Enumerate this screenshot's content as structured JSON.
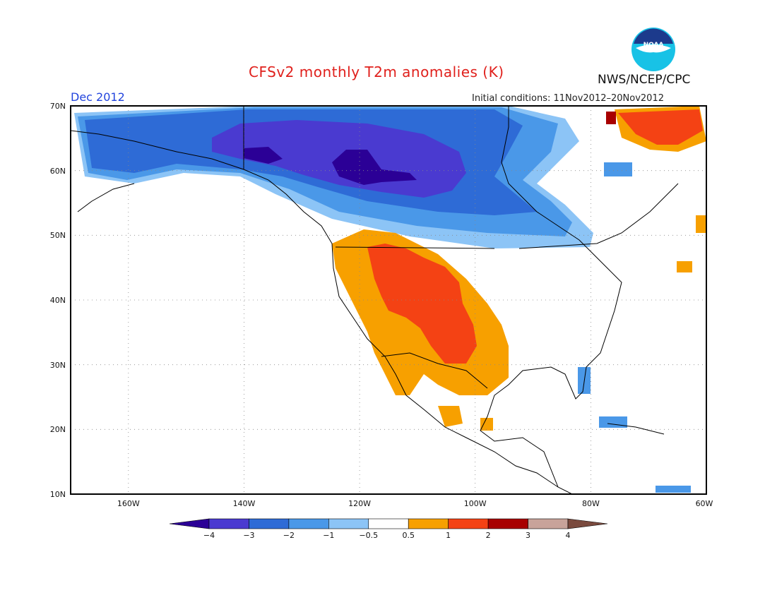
{
  "title": "CFSv2 monthly T2m anomalies (K)",
  "org": "NWS/NCEP/CPC",
  "logo_text": "NOAA",
  "month": "Dec 2012",
  "init": "Initial conditions: 11Nov2012–20Nov2012",
  "lat_labels": [
    "70N",
    "60N",
    "50N",
    "40N",
    "30N",
    "20N",
    "10N"
  ],
  "lon_labels": [
    "160W",
    "140W",
    "120W",
    "100W",
    "80W",
    "60W"
  ],
  "colorbar": {
    "colors": [
      "#2b0096",
      "#4a3ad0",
      "#2e6bd6",
      "#4a98e8",
      "#8cc4f6",
      "#ffffff",
      "#f7a000",
      "#f44214",
      "#a80000",
      "#c8a39a",
      "#7a4a3e"
    ],
    "labels": [
      "−4",
      "−3",
      "−2",
      "−1",
      "−0.5",
      "0.5",
      "1",
      "2",
      "3",
      "4"
    ]
  },
  "legend_colors": {
    "n4": "#2b0096",
    "n3": "#4a3ad0",
    "n2": "#2e6bd6",
    "n1": "#4a98e8",
    "n05": "#8cc4f6",
    "p05": "#f7a000",
    "p1": "#f44214",
    "p2": "#a80000"
  }
}
